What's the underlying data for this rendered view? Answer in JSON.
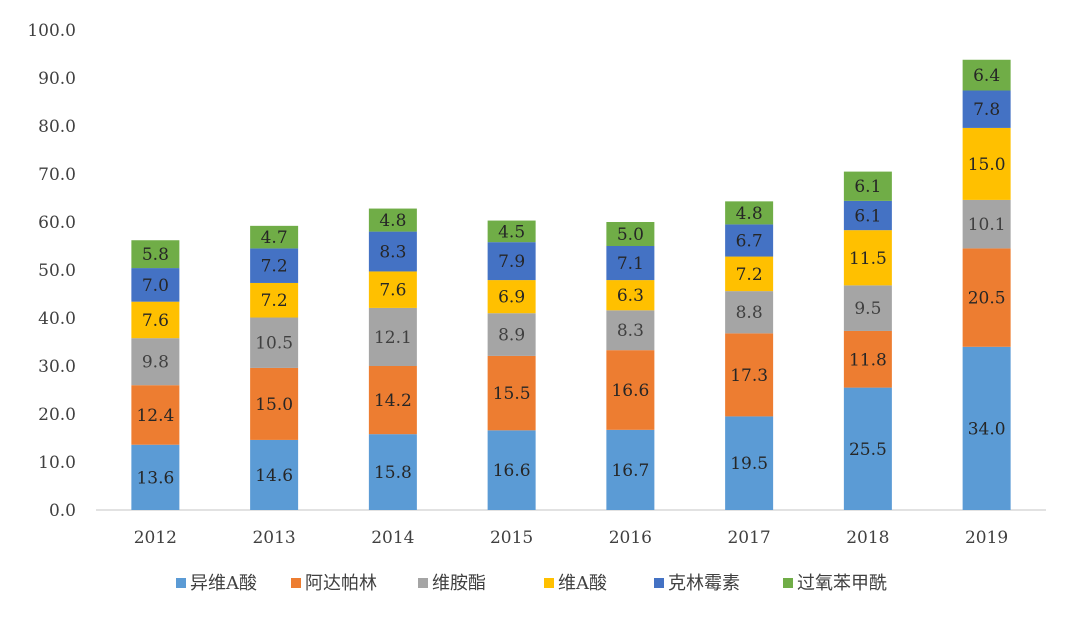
{
  "chart_data": {
    "type": "bar",
    "stacked": true,
    "categories": [
      "2012",
      "2013",
      "2014",
      "2015",
      "2016",
      "2017",
      "2018",
      "2019"
    ],
    "series": [
      {
        "name": "异维A酸",
        "color": "#5b9bd5",
        "values": [
          13.6,
          14.6,
          15.8,
          16.6,
          16.7,
          19.5,
          25.5,
          34.0
        ],
        "labels": [
          "13.6",
          "14.6",
          "15.8",
          "16.6",
          "16.7",
          "19.5",
          "25.5",
          "34.0"
        ]
      },
      {
        "name": "阿达帕林",
        "color": "#ed7d31",
        "values": [
          12.4,
          15.0,
          14.2,
          15.5,
          16.6,
          17.3,
          11.8,
          20.5
        ],
        "labels": [
          "12.4",
          "15.0",
          "14.2",
          "15.5",
          "16.6",
          "17.3",
          "11.8",
          "20.5"
        ]
      },
      {
        "name": "维胺酯",
        "color": "#a5a5a5",
        "values": [
          9.8,
          10.5,
          12.1,
          8.9,
          8.3,
          8.8,
          9.5,
          10.1
        ],
        "labels": [
          "9.8",
          "10.5",
          "12.1",
          "8.9",
          "8.3",
          "8.8",
          "9.5",
          "10.1"
        ]
      },
      {
        "name": "维A酸",
        "color": "#ffc000",
        "values": [
          7.6,
          7.2,
          7.6,
          6.9,
          6.3,
          7.2,
          11.5,
          15.0
        ],
        "labels": [
          "7.6",
          "7.2",
          "7.6",
          "6.9",
          "6.3",
          "7.2",
          "11.5",
          "15.0"
        ]
      },
      {
        "name": "克林霉素",
        "color": "#4472c4",
        "values": [
          7.0,
          7.2,
          8.3,
          7.9,
          7.1,
          6.7,
          6.1,
          7.8
        ],
        "labels": [
          "7.0",
          "7.2",
          "8.3",
          "7.9",
          "7.1",
          "6.7",
          "6.1",
          "7.8"
        ]
      },
      {
        "name": "过氧苯甲酰",
        "color": "#70ad47",
        "values": [
          5.8,
          4.7,
          4.8,
          4.5,
          5.0,
          4.8,
          6.1,
          6.4
        ],
        "labels": [
          "5.8",
          "4.7",
          "4.8",
          "4.5",
          "5.0",
          "4.8",
          "6.1",
          "6.4"
        ]
      }
    ],
    "y_ticks": [
      "0.0",
      "10.0",
      "20.0",
      "30.0",
      "40.0",
      "50.0",
      "60.0",
      "70.0",
      "80.0",
      "90.0",
      "100.0"
    ],
    "ylim": [
      0,
      100
    ],
    "grid": false,
    "legend_position": "bottom",
    "title": "",
    "xlabel": "",
    "ylabel": ""
  }
}
